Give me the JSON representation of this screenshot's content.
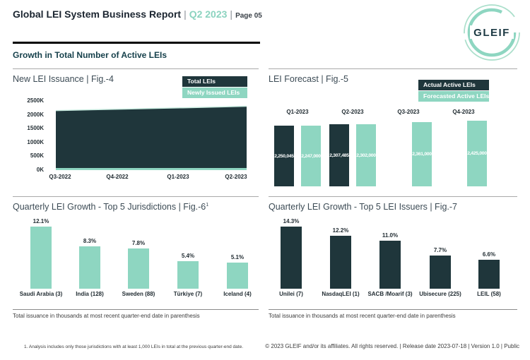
{
  "header": {
    "title": "Global LEI System Business Report",
    "separator": "|",
    "period": "Q2 2023",
    "page": "Page 05",
    "logo_text": "GLEIF"
  },
  "section": {
    "title": "Growth in Total Number of Active LEIs"
  },
  "colors": {
    "dark": "#1f363b",
    "mint": "#8ed6c1",
    "accent_text": "#8bd3bf",
    "section_title": "#143f4a"
  },
  "panels": {
    "issuance": {
      "title": "New LEI Issuance | Fig.-4",
      "legend": [
        {
          "label": "Total LEIs",
          "color": "#1f363b"
        },
        {
          "label": "Newly Issued LEIs",
          "color": "#8ed6c1"
        }
      ]
    },
    "forecast": {
      "title": "LEI Forecast | Fig.-5",
      "legend": [
        {
          "label": "Actual Active LEIs",
          "color": "#1f363b"
        },
        {
          "label": "Forecasted Active LEIs",
          "color": "#8ed6c1"
        }
      ]
    },
    "jurisdictions": {
      "title": "Quarterly LEI Growth - Top 5 Jurisdictions | Fig.-6",
      "sup": "1",
      "note": "Total issuance in thousands at most recent quarter-end date in parenthesis"
    },
    "issuers": {
      "title": "Quarterly LEI Growth - Top 5 LEI Issuers | Fig.-7",
      "note": "Total issuance in thousands at most recent quarter-end date in parenthesis"
    }
  },
  "chart_data": [
    {
      "id": "new_lei_issuance",
      "type": "area",
      "title": "New LEI Issuance | Fig.-4",
      "categories": [
        "Q3-2022",
        "Q4-2022",
        "Q1-2023",
        "Q2-2023"
      ],
      "series": [
        {
          "name": "Total LEIs",
          "color": "#1f363b",
          "values": [
            2153000,
            2204000,
            2252000,
            2307485
          ]
        },
        {
          "name": "Newly Issued LEIs",
          "color": "#8ed6c1",
          "values": [
            62000,
            63000,
            65000,
            60000
          ]
        }
      ],
      "ylim": [
        0,
        2500000
      ],
      "yticks": [
        "2500K",
        "2000K",
        "1500K",
        "1000K",
        "500K",
        "0K"
      ],
      "legend_position": "top-right",
      "grid": false
    },
    {
      "id": "lei_forecast",
      "type": "bar",
      "title": "LEI Forecast | Fig.-5",
      "groups": [
        {
          "quarter": "Q1-2023",
          "bars": [
            {
              "series": "Actual Active LEIs",
              "value": 2250045,
              "label": "2,250,045"
            },
            {
              "series": "Forecasted Active LEIs",
              "value": 2247000,
              "label": "2,247,000"
            }
          ]
        },
        {
          "quarter": "Q2-2023",
          "bars": [
            {
              "series": "Actual Active LEIs",
              "value": 2307485,
              "label": "2,307,485"
            },
            {
              "series": "Forecasted Active LEIs",
              "value": 2302000,
              "label": "2,302,000"
            }
          ]
        },
        {
          "quarter": "Q3-2023",
          "bars": [
            {
              "series": "Forecasted Active LEIs",
              "value": 2361000,
              "label": "2,361,000"
            }
          ]
        },
        {
          "quarter": "Q4-2023",
          "bars": [
            {
              "series": "Forecasted Active LEIs",
              "value": 2425000,
              "label": "2,425,000"
            }
          ]
        }
      ],
      "legend_position": "top-right",
      "grid": false
    },
    {
      "id": "top5_jurisdictions",
      "type": "bar",
      "title": "Quarterly LEI Growth - Top 5 Jurisdictions | Fig.-6",
      "categories": [
        "Saudi Arabia (3)",
        "India (128)",
        "Sweden (88)",
        "Türkiye (7)",
        "Iceland (4)"
      ],
      "values": [
        12.1,
        8.3,
        7.8,
        5.4,
        5.1
      ],
      "labels": [
        "12.1%",
        "8.3%",
        "7.8%",
        "5.4%",
        "5.1%"
      ],
      "bar_color": "#8ed6c1",
      "grid": false
    },
    {
      "id": "top5_issuers",
      "type": "bar",
      "title": "Quarterly LEI Growth - Top 5 LEI Issuers | Fig.-7",
      "categories": [
        "Unilei (7)",
        "NasdaqLEI (1)",
        "SACB /Moarif (3)",
        "Ubisecure (225)",
        "LEIL (58)"
      ],
      "values": [
        14.3,
        12.2,
        11.0,
        7.7,
        6.6
      ],
      "labels": [
        "14.3%",
        "12.2%",
        "11.0%",
        "7.7%",
        "6.6%"
      ],
      "bar_color": "#1f363b",
      "grid": false
    }
  ],
  "footer": {
    "footnote": "1. Analysis includes only those jurisdictions with at least 1,000 LEIs in total at the previous quarter-end date.",
    "copyright": "© 2023 GLEIF and/or its affiliates. All rights reserved. | Release date 2023-07-18 | Version 1.0 | Public"
  }
}
